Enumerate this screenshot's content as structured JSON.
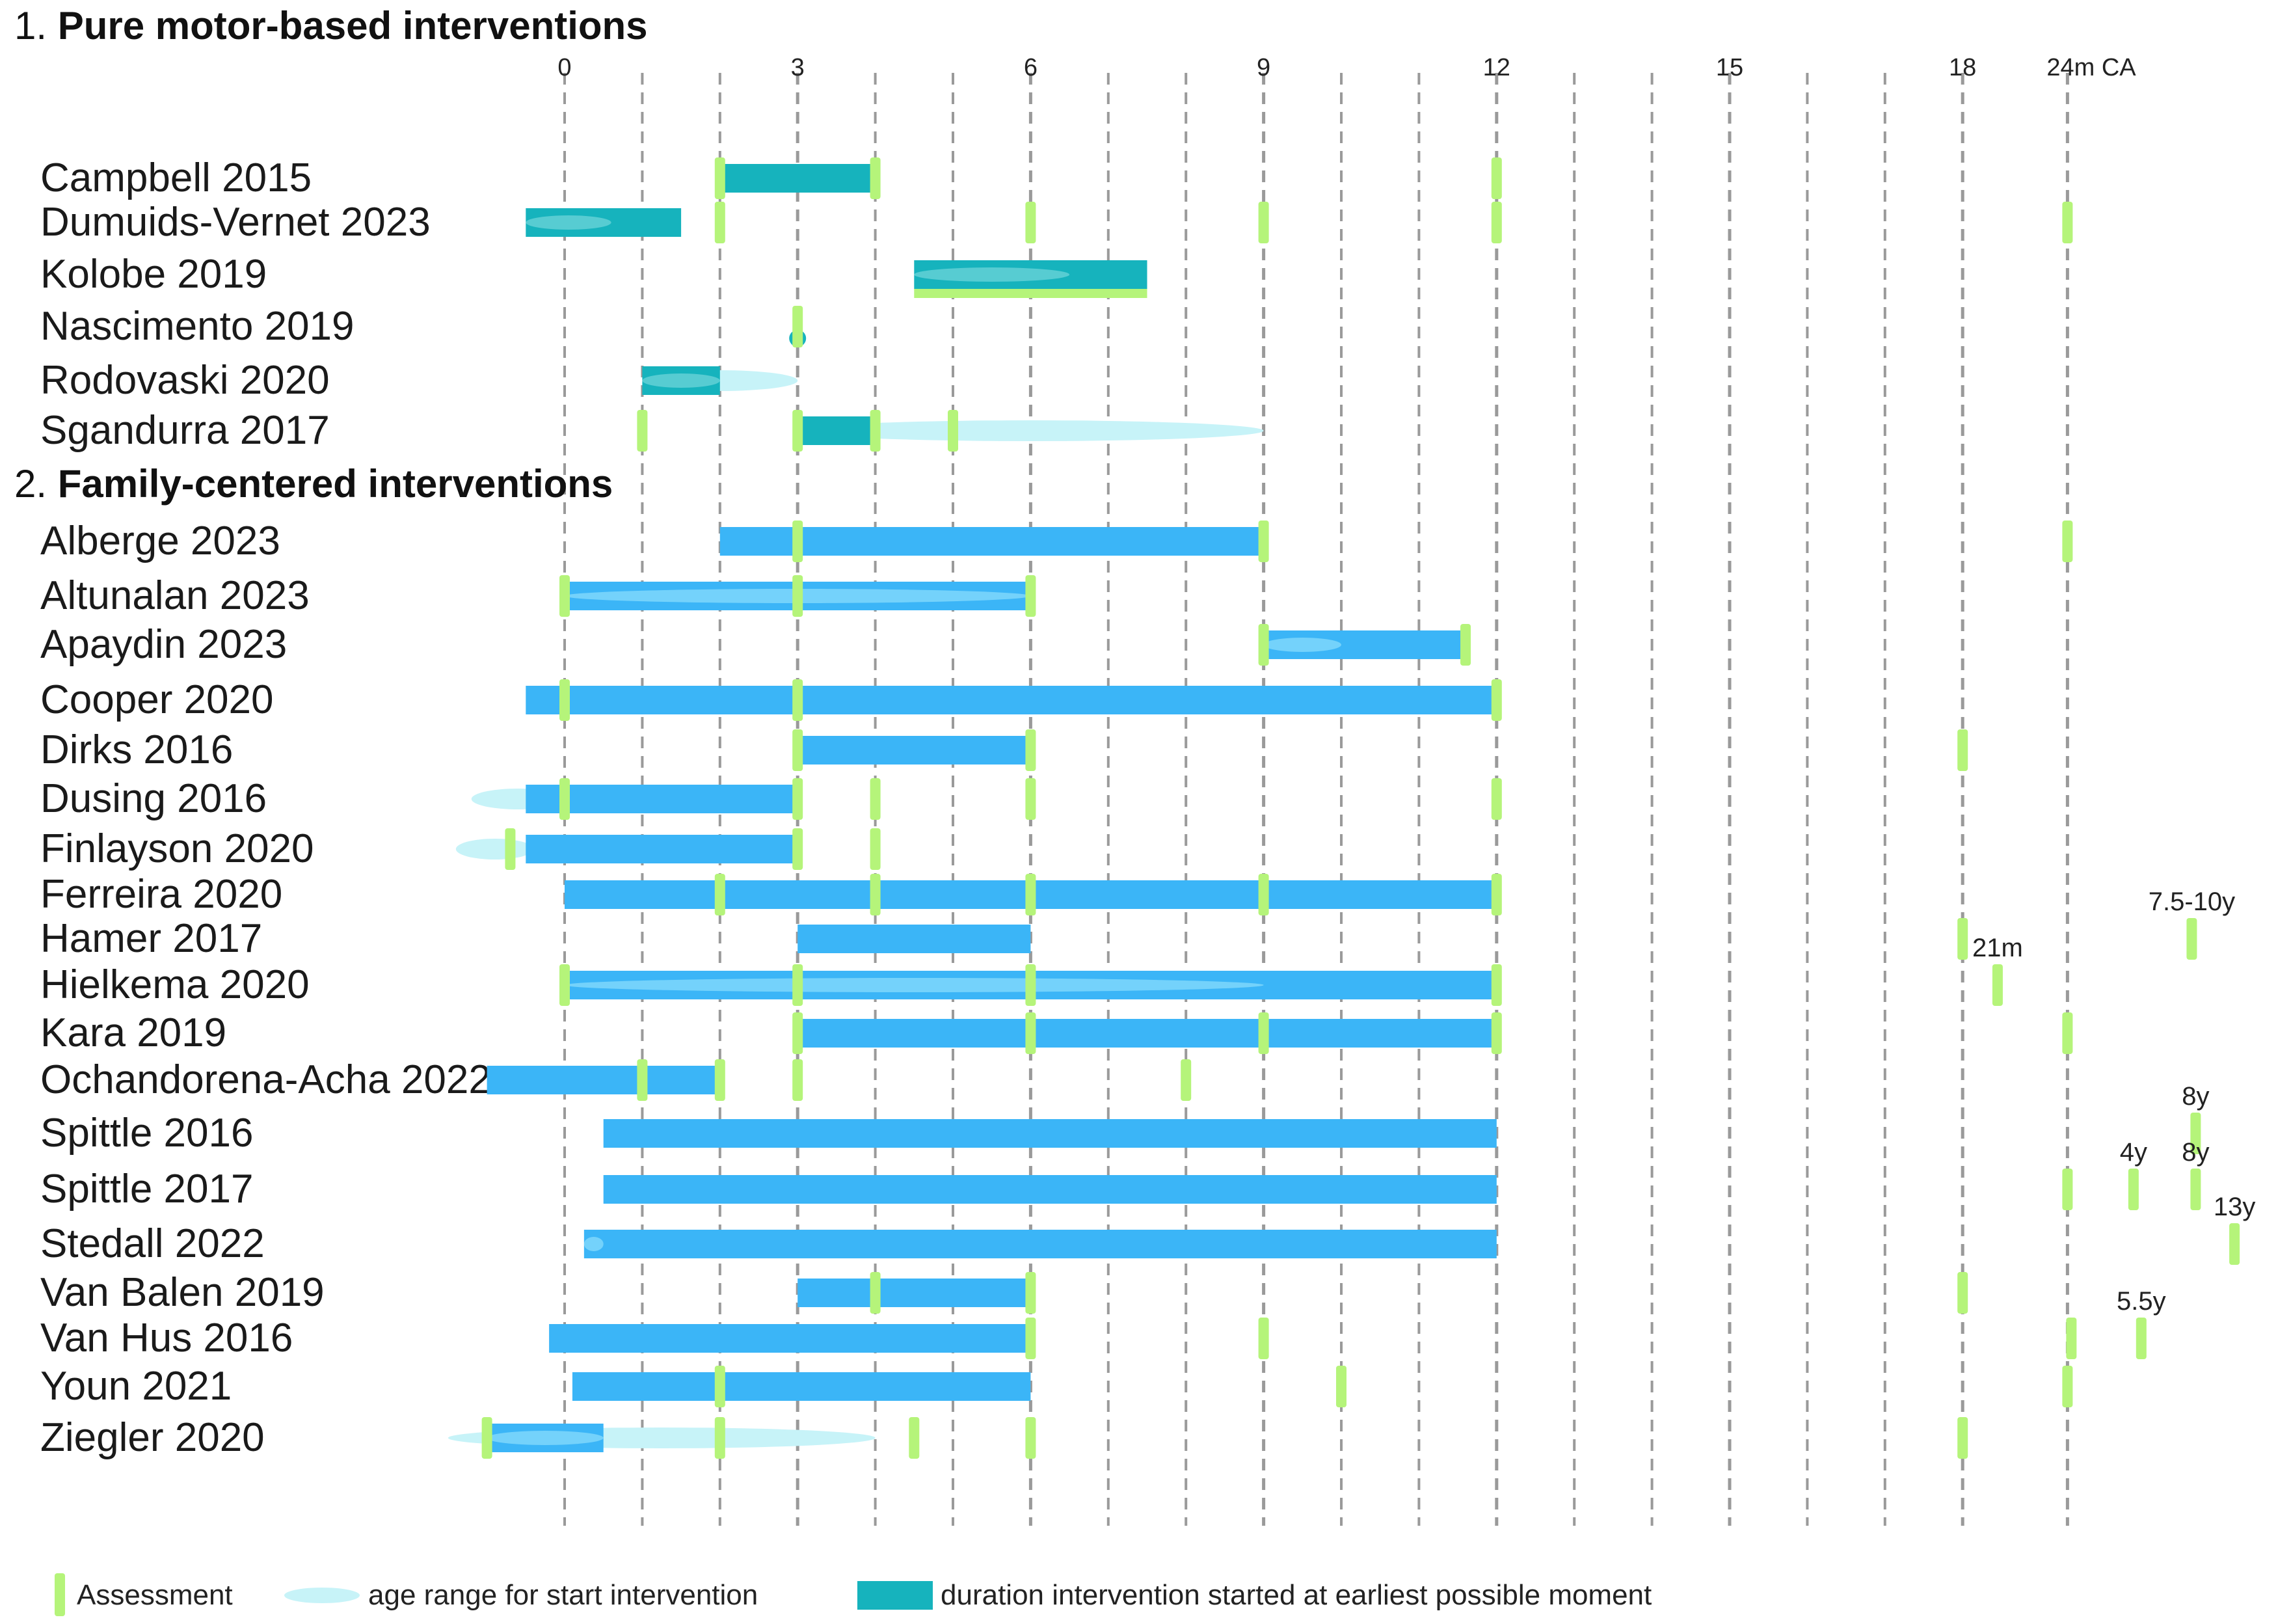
{
  "chart_data": {
    "type": "timeline",
    "unit": "months corrected age (CA)",
    "xlim": [
      -2,
      25.5
    ],
    "ticks": [
      {
        "v": 0,
        "label": "0"
      },
      {
        "v": 3,
        "label": "3"
      },
      {
        "v": 6,
        "label": "6"
      },
      {
        "v": 9,
        "label": "9"
      },
      {
        "v": 12,
        "label": "12"
      },
      {
        "v": 15,
        "label": "15"
      },
      {
        "v": 18,
        "label": "18"
      },
      {
        "v": 19.35,
        "label": "24m CA"
      }
    ],
    "dashed_lines": [
      0,
      1,
      2,
      3,
      4,
      5,
      6,
      7,
      8,
      9,
      10,
      11,
      12,
      13,
      14,
      15,
      16,
      17,
      18,
      19.35
    ],
    "major_lines": [
      3,
      6,
      9,
      12,
      15,
      18,
      19.35
    ],
    "colors": {
      "assessment": "#b5f47a",
      "motor_bar": "#16b3bd",
      "family_bar": "#3bb5f7",
      "age_range": "#c7f3f8",
      "age_range_inner": "#73d8e8",
      "gridline": "#9a9a9a"
    },
    "sections": [
      {
        "title_num": "1.",
        "title": "Pure motor-based interventions",
        "type": "motor",
        "rows": [
          {
            "label": "Campbell 2015",
            "bars": [
              [
                2,
                4
              ]
            ],
            "ranges": [],
            "inner": [],
            "assess": [
              2,
              4,
              12
            ]
          },
          {
            "label": "Dumuids-Vernet 2023",
            "bars": [
              [
                -0.5,
                1.5
              ]
            ],
            "ranges": [],
            "inner": [
              [
                -0.5,
                0.6
              ]
            ],
            "assess": [
              2,
              6,
              9,
              12,
              19.35
            ]
          },
          {
            "label": "Kolobe 2019",
            "bars": [
              [
                4.5,
                7.5
              ]
            ],
            "ranges": [],
            "inner": [
              [
                4.5,
                6.5
              ]
            ],
            "assess": [],
            "underbar": [
              4.5,
              7.5
            ]
          },
          {
            "label": "Nascimento 2019",
            "bars": [],
            "ranges": [],
            "inner": [],
            "assess": [
              3
            ],
            "dot": 3
          },
          {
            "label": "Rodovaski 2020",
            "bars": [
              [
                1,
                2
              ]
            ],
            "ranges": [
              [
                1,
                3
              ]
            ],
            "inner": [
              [
                1,
                2
              ]
            ],
            "assess": []
          },
          {
            "label": "Sgandurra 2017",
            "bars": [
              [
                3,
                4
              ]
            ],
            "ranges": [
              [
                3,
                9
              ]
            ],
            "inner": [],
            "assess": [
              1,
              3,
              4,
              5
            ]
          }
        ]
      },
      {
        "title_num": "2.",
        "title": "Family-centered interventions",
        "type": "family",
        "rows": [
          {
            "label": "Alberge 2023",
            "bars": [
              [
                2,
                9
              ]
            ],
            "ranges": [],
            "inner": [],
            "assess": [
              3,
              9,
              19.35
            ]
          },
          {
            "label": "Altunalan 2023",
            "bars": [
              [
                0,
                6
              ]
            ],
            "ranges": [],
            "inner": [
              [
                0,
                6
              ]
            ],
            "assess": [
              0,
              3,
              6
            ]
          },
          {
            "label": "Apaydin 2023",
            "bars": [
              [
                9,
                11.6
              ]
            ],
            "ranges": [],
            "inner": [
              [
                9,
                10
              ]
            ],
            "assess": [
              9,
              11.6
            ]
          },
          {
            "label": "Cooper 2020",
            "bars": [
              [
                -0.5,
                12
              ]
            ],
            "ranges": [],
            "inner": [],
            "assess": [
              0,
              3,
              12
            ]
          },
          {
            "label": "Dirks 2016",
            "bars": [
              [
                3,
                6
              ]
            ],
            "ranges": [],
            "inner": [],
            "assess": [
              3,
              6,
              18
            ]
          },
          {
            "label": "Dusing 2016",
            "bars": [
              [
                -0.5,
                3
              ]
            ],
            "ranges": [
              [
                -1.2,
                0
              ]
            ],
            "inner": [],
            "assess": [
              0,
              3,
              4,
              6,
              12
            ]
          },
          {
            "label": "Finlayson 2020",
            "bars": [
              [
                -0.5,
                3
              ]
            ],
            "ranges": [
              [
                -1.4,
                -0.4
              ]
            ],
            "inner": [],
            "assess": [
              -0.7,
              3,
              4
            ]
          },
          {
            "label": "Ferreira 2020",
            "bars": [
              [
                0,
                12
              ]
            ],
            "ranges": [],
            "inner": [],
            "assess": [
              2,
              4,
              6,
              9,
              12
            ]
          },
          {
            "label": "Hamer 2017",
            "bars": [
              [
                3,
                6
              ]
            ],
            "ranges": [],
            "inner": [],
            "assess": [
              18,
              20.95
            ],
            "assess_text": {
              "x": 20.95,
              "text": "7.5-10y"
            }
          },
          {
            "label": "Hielkema 2020",
            "bars": [
              [
                0,
                12
              ]
            ],
            "ranges": [],
            "inner": [
              [
                0,
                9
              ]
            ],
            "assess": [
              0,
              3,
              6,
              12,
              18.45
            ],
            "assess_text": {
              "x": 18.45,
              "text": "21m"
            }
          },
          {
            "label": "Kara 2019",
            "bars": [
              [
                3,
                12
              ]
            ],
            "ranges": [],
            "inner": [],
            "assess": [
              3,
              6,
              9,
              12,
              19.35
            ]
          },
          {
            "label": "Ochandorena-Acha 2022",
            "bars": [
              [
                -1,
                2
              ]
            ],
            "ranges": [],
            "inner": [],
            "assess": [
              1,
              2,
              3,
              8
            ]
          },
          {
            "label": "Spittle 2016",
            "bars": [
              [
                0.5,
                12
              ]
            ],
            "ranges": [],
            "inner": [],
            "assess": [
              21.0
            ],
            "assess_text": {
              "x": 21.0,
              "text": "8y"
            }
          },
          {
            "label": "Spittle 2017",
            "bars": [
              [
                0.5,
                12
              ]
            ],
            "ranges": [],
            "inner": [],
            "assess": [
              19.35,
              20.2,
              21.0
            ],
            "assess_text": {
              "x": 20.2,
              "text": "4y"
            },
            "assess_text2": {
              "x": 21.0,
              "text": "8y"
            }
          },
          {
            "label": "Stedall 2022",
            "bars": [
              [
                0.25,
                12
              ]
            ],
            "ranges": [],
            "inner": [
              [
                0.25,
                0.5
              ]
            ],
            "assess": [
              21.5
            ],
            "assess_text": {
              "x": 21.5,
              "text": "13y"
            }
          },
          {
            "label": "Van Balen 2019",
            "bars": [
              [
                3,
                6
              ]
            ],
            "ranges": [],
            "inner": [],
            "assess": [
              4,
              6,
              18
            ]
          },
          {
            "label": "Van Hus 2016",
            "bars": [
              [
                -0.2,
                6
              ]
            ],
            "ranges": [],
            "inner": [],
            "assess": [
              6,
              9,
              19.4,
              20.3
            ],
            "assess_text": {
              "x": 20.3,
              "text": "5.5y"
            }
          },
          {
            "label": "Youn 2021",
            "bars": [
              [
                0.1,
                6
              ]
            ],
            "ranges": [],
            "inner": [],
            "assess": [
              2,
              10,
              19.35
            ]
          },
          {
            "label": "Ziegler 2020",
            "bars": [
              [
                -1,
                0.5
              ]
            ],
            "ranges": [
              [
                -1.5,
                4
              ]
            ],
            "inner": [
              [
                -1,
                0.5
              ]
            ],
            "assess": [
              -1,
              2,
              4.5,
              6,
              18
            ]
          }
        ]
      }
    ],
    "legend": [
      {
        "key": "assessment",
        "label": "Assessment"
      },
      {
        "key": "range",
        "label": "age range for start intervention"
      },
      {
        "key": "duration",
        "label": "duration intervention started at earliest possible moment"
      }
    ]
  }
}
